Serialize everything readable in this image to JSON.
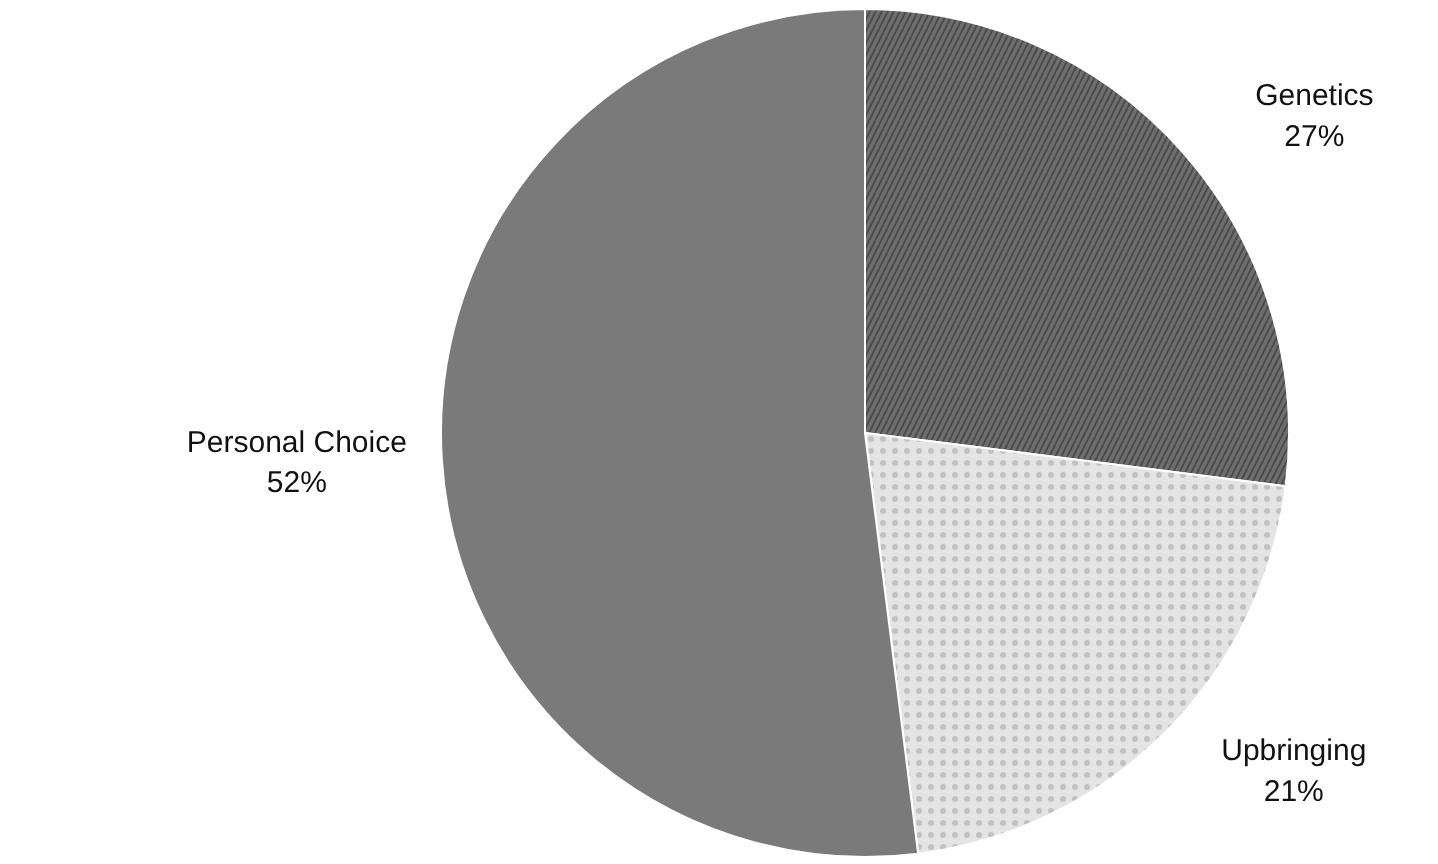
{
  "chart_data": {
    "type": "pie",
    "categories": [
      "Genetics",
      "Upbringing",
      "Personal Choice"
    ],
    "values": [
      27,
      21,
      52
    ],
    "value_labels": [
      "27%",
      "21%",
      "52%"
    ],
    "colors": [
      "#6e6e6e",
      "#e4e4e4",
      "#7a7a7a"
    ]
  }
}
